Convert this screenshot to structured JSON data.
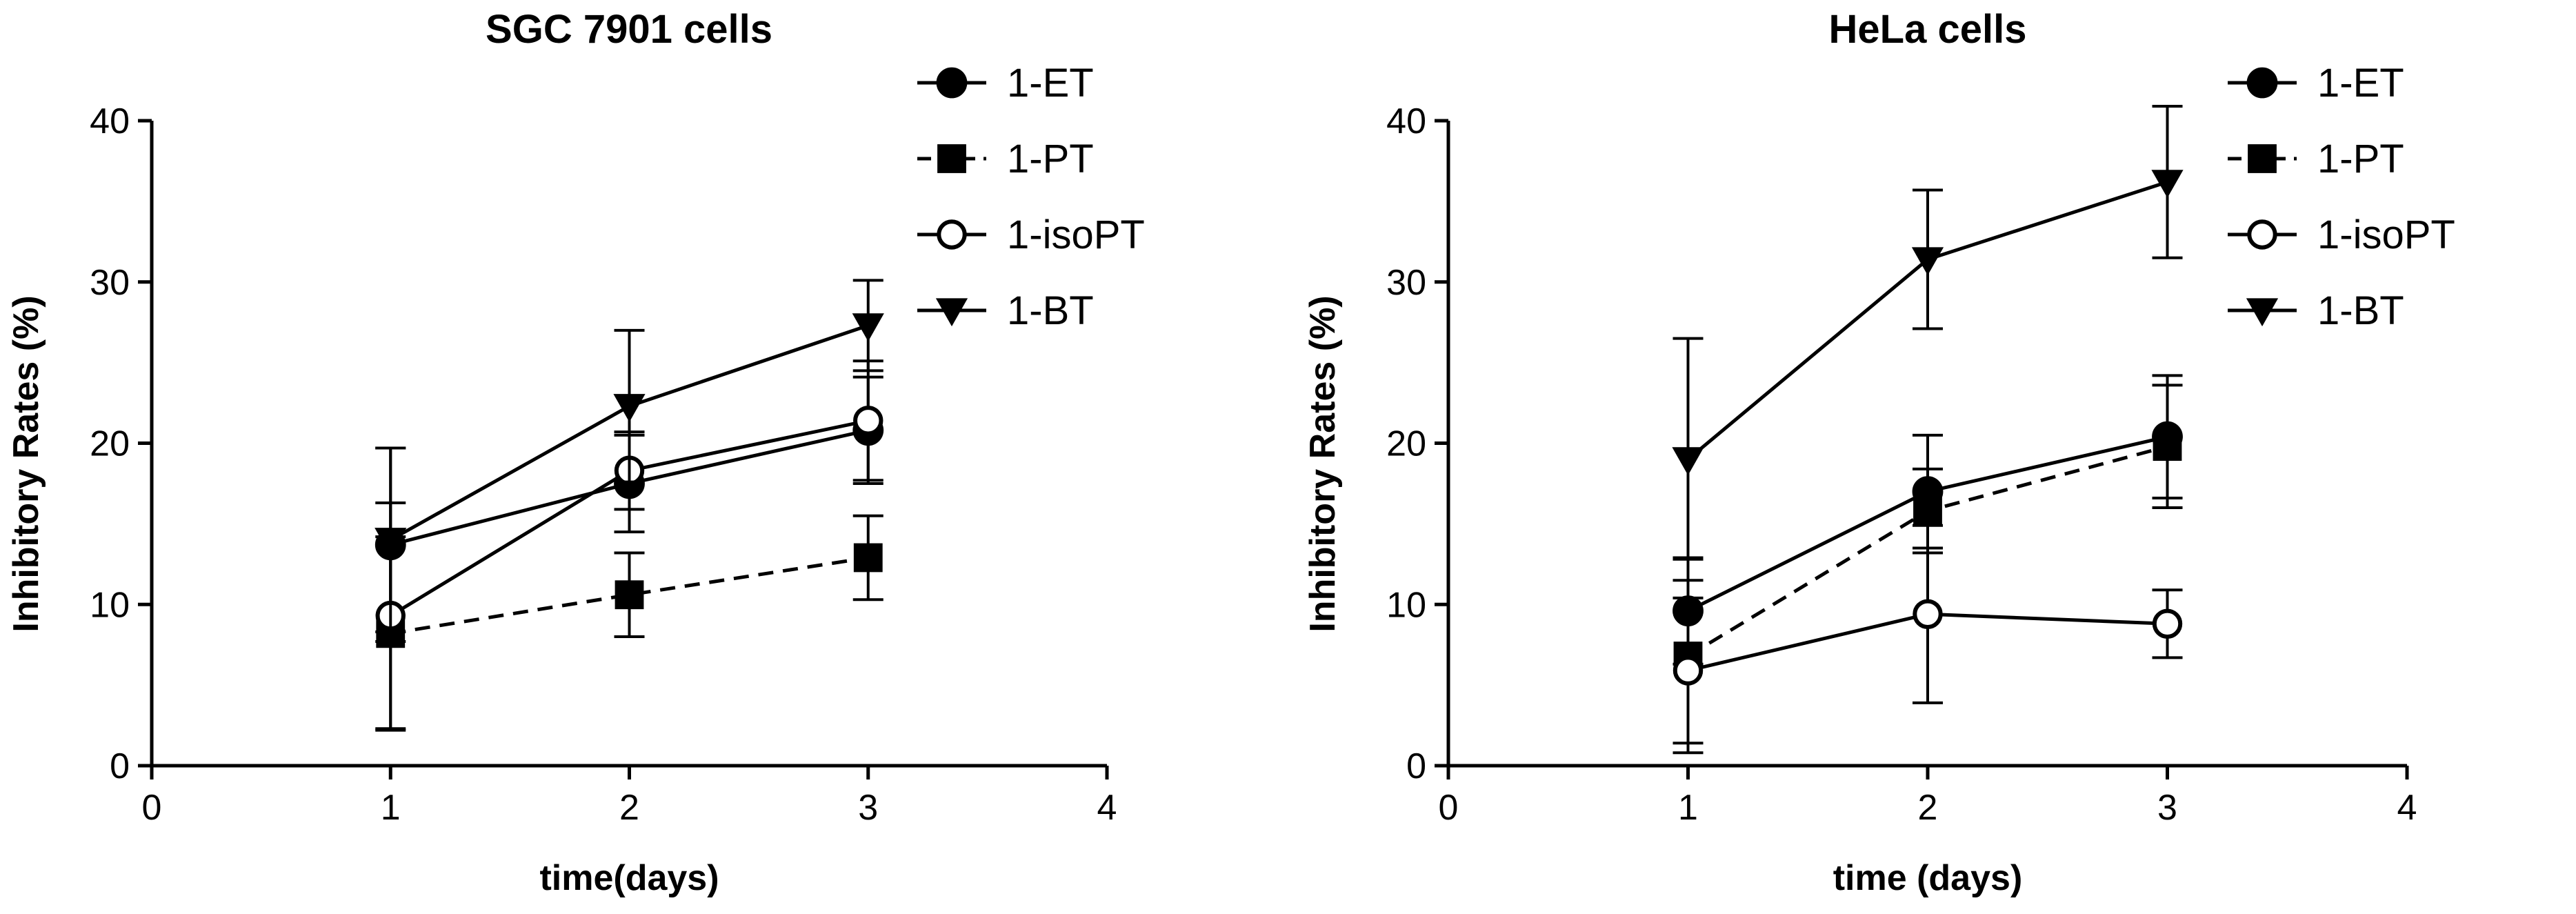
{
  "chart_data": [
    {
      "type": "line",
      "title": "SGC 7901 cells",
      "xlabel": "time(days)",
      "ylabel": "Inhibitory Rates (%)",
      "xlim": [
        0,
        4
      ],
      "ylim": [
        0,
        40
      ],
      "xticks": [
        "0",
        "1",
        "2",
        "3",
        "4"
      ],
      "yticks": [
        "0",
        "10",
        "20",
        "30",
        "40"
      ],
      "x": [
        1,
        2,
        3
      ],
      "grid": false,
      "legend_position": "top-right outside",
      "series": [
        {
          "name": "1-ET",
          "marker": "circle-filled",
          "dash": false,
          "values": [
            13.7,
            17.5,
            20.8
          ],
          "error": [
            6.0,
            3.0,
            3.3
          ]
        },
        {
          "name": "1-PT",
          "marker": "square-filled",
          "dash": true,
          "values": [
            8.2,
            10.6,
            12.9
          ],
          "error": [
            6.0,
            2.6,
            2.6
          ]
        },
        {
          "name": "1-isoPT",
          "marker": "circle-open",
          "dash": false,
          "values": [
            9.3,
            18.3,
            21.4
          ],
          "error": [
            7.0,
            2.4,
            3.7
          ]
        },
        {
          "name": "1-BT",
          "marker": "triangle-down-filled",
          "dash": false,
          "values": [
            14.0,
            22.3,
            27.3
          ],
          "error": [
            5.7,
            4.7,
            2.8
          ]
        }
      ]
    },
    {
      "type": "line",
      "title": "HeLa cells",
      "xlabel": "time (days)",
      "ylabel": "Inhibitory Rates (%)",
      "xlim": [
        0,
        4
      ],
      "ylim": [
        0,
        40
      ],
      "xticks": [
        "0",
        "1",
        "2",
        "3",
        "4"
      ],
      "yticks": [
        "0",
        "10",
        "20",
        "30",
        "40"
      ],
      "x": [
        1,
        2,
        3
      ],
      "grid": false,
      "legend_position": "top-right outside",
      "series": [
        {
          "name": "1-ET",
          "marker": "circle-filled",
          "dash": false,
          "values": [
            9.6,
            17.0,
            20.4
          ],
          "error": [
            3.3,
            3.5,
            3.8
          ]
        },
        {
          "name": "1-PT",
          "marker": "square-filled",
          "dash": true,
          "values": [
            6.8,
            15.8,
            19.8
          ],
          "error": [
            6.0,
            2.6,
            3.8
          ]
        },
        {
          "name": "1-isoPT",
          "marker": "circle-open",
          "dash": false,
          "values": [
            5.9,
            9.4,
            8.8
          ],
          "error": [
            4.5,
            5.5,
            2.1
          ]
        },
        {
          "name": "1-BT",
          "marker": "triangle-down-filled",
          "dash": false,
          "values": [
            19.0,
            31.4,
            36.2
          ],
          "error": [
            7.5,
            4.3,
            4.7
          ]
        }
      ]
    }
  ]
}
